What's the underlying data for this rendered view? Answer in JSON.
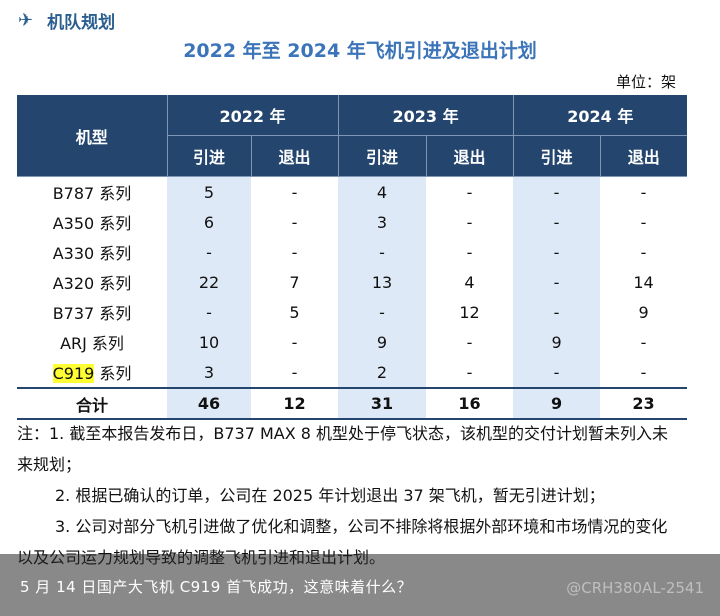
{
  "section": {
    "icon": "airplane-icon",
    "title": "机队规划"
  },
  "doc_title": "2022 年至 2024 年飞机引进及退出计划",
  "unit": "单位：架",
  "table": {
    "model_header": "机型",
    "years": [
      "2022 年",
      "2023 年",
      "2024 年"
    ],
    "sub_headers": [
      "引进",
      "退出",
      "引进",
      "退出",
      "引进",
      "退出"
    ],
    "rows": [
      {
        "model": "B787 系列",
        "values": [
          "5",
          "-",
          "4",
          "-",
          "-",
          "-"
        ]
      },
      {
        "model": "A350 系列",
        "values": [
          "6",
          "-",
          "3",
          "-",
          "-",
          "-"
        ]
      },
      {
        "model": "A330 系列",
        "values": [
          "-",
          "-",
          "-",
          "-",
          "-",
          "-"
        ]
      },
      {
        "model": "A320 系列",
        "values": [
          "22",
          "7",
          "13",
          "4",
          "-",
          "14"
        ]
      },
      {
        "model": "B737 系列",
        "values": [
          "-",
          "5",
          "-",
          "12",
          "-",
          "9"
        ]
      },
      {
        "model": "ARJ 系列",
        "values": [
          "10",
          "-",
          "9",
          "-",
          "9",
          "-"
        ]
      }
    ],
    "c919_row": {
      "highlight": "C919",
      "suffix": " 系列",
      "values": [
        "3",
        "-",
        "2",
        "-",
        "-",
        "-"
      ]
    },
    "total": {
      "label": "合计",
      "values": [
        "46",
        "12",
        "31",
        "16",
        "9",
        "23"
      ]
    }
  },
  "notes": {
    "n1": "注：1. 截至本报告发布日，B737 MAX 8 机型处于停飞状态，该机型的交付计划暂未列入未来规划；",
    "n2": "2. 根据已确认的订单，公司在 2025 年计划退出 37 架飞机，暂无引进计划；",
    "n3": "3. 公司对部分飞机引进做了优化和调整，公司不排除将根据外部环境和市场情况的变化以及公司运力规划导致的调整飞机引进和退出计划。"
  },
  "caption": "5 月 14 日国产大飞机 C919 首飞成功，这意味着什么？",
  "watermark": "@CRH380AL-2541",
  "colors": {
    "header_bg": "#24466e",
    "highlight_col": "#dde9f6",
    "title": "#3b74b8"
  }
}
